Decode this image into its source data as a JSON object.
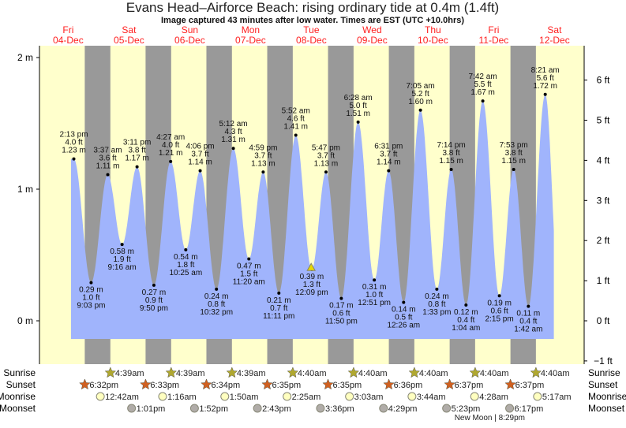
{
  "chart_data": {
    "type": "area",
    "title": "Evans Head–Airforce Beach: rising  ordinary tide at 0.4m (1.4ft)",
    "subtitle": "Image captured 43 minutes after low water. Times are EST (UTC +10.0hrs)",
    "days": [
      {
        "dow": "Fri",
        "date": "04-Dec"
      },
      {
        "dow": "Sat",
        "date": "05-Dec"
      },
      {
        "dow": "Sun",
        "date": "06-Dec"
      },
      {
        "dow": "Mon",
        "date": "07-Dec"
      },
      {
        "dow": "Tue",
        "date": "08-Dec"
      },
      {
        "dow": "Wed",
        "date": "09-Dec"
      },
      {
        "dow": "Thu",
        "date": "10-Dec"
      },
      {
        "dow": "Fri",
        "date": "11-Dec"
      },
      {
        "dow": "Sat",
        "date": "12-Dec"
      }
    ],
    "y_left": {
      "unit": "m",
      "ticks": [
        "0 m",
        "1 m",
        "2 m"
      ],
      "values": [
        0,
        1,
        2
      ]
    },
    "y_right": {
      "unit": "ft",
      "ticks": [
        "−1 ft",
        "0 ft",
        "1 ft",
        "2 ft",
        "3 ft",
        "4 ft",
        "5 ft",
        "6 ft"
      ],
      "values": [
        -1,
        0,
        1,
        2,
        3,
        4,
        5,
        6
      ]
    },
    "extremes": [
      {
        "day": 0,
        "time": "2:13 pm",
        "ft": "4.0 ft",
        "m": 1.23,
        "type": "high"
      },
      {
        "day": 0,
        "time": "9:03 pm",
        "ft": "1.0 ft",
        "m": 0.29,
        "type": "low"
      },
      {
        "day": 1,
        "time": "3:37 am",
        "ft": "3.6 ft",
        "m": 1.11,
        "type": "high"
      },
      {
        "day": 1,
        "time": "9:16 am",
        "ft": "1.9 ft",
        "m": 0.58,
        "type": "low"
      },
      {
        "day": 1,
        "time": "3:11 pm",
        "ft": "3.8 ft",
        "m": 1.17,
        "type": "high"
      },
      {
        "day": 1,
        "time": "9:50 pm",
        "ft": "0.9 ft",
        "m": 0.27,
        "type": "low"
      },
      {
        "day": 2,
        "time": "4:27 am",
        "ft": "4.0 ft",
        "m": 1.21,
        "type": "high"
      },
      {
        "day": 2,
        "time": "10:25 am",
        "ft": "1.8 ft",
        "m": 0.54,
        "type": "low"
      },
      {
        "day": 2,
        "time": "4:06 pm",
        "ft": "3.7 ft",
        "m": 1.14,
        "type": "high"
      },
      {
        "day": 2,
        "time": "10:32 pm",
        "ft": "0.8 ft",
        "m": 0.24,
        "type": "low"
      },
      {
        "day": 3,
        "time": "5:12 am",
        "ft": "4.3 ft",
        "m": 1.31,
        "type": "high"
      },
      {
        "day": 3,
        "time": "11:20 am",
        "ft": "1.5 ft",
        "m": 0.47,
        "type": "low"
      },
      {
        "day": 3,
        "time": "4:59 pm",
        "ft": "3.7 ft",
        "m": 1.13,
        "type": "high"
      },
      {
        "day": 3,
        "time": "11:11 pm",
        "ft": "0.7 ft",
        "m": 0.21,
        "type": "low"
      },
      {
        "day": 4,
        "time": "5:52 am",
        "ft": "4.6 ft",
        "m": 1.41,
        "type": "high"
      },
      {
        "day": 4,
        "time": "12:09 pm",
        "ft": "1.3 ft",
        "m": 0.39,
        "type": "low"
      },
      {
        "day": 4,
        "time": "5:47 pm",
        "ft": "3.7 ft",
        "m": 1.13,
        "type": "high"
      },
      {
        "day": 4,
        "time": "11:50 pm",
        "ft": "0.6 ft",
        "m": 0.17,
        "type": "low"
      },
      {
        "day": 5,
        "time": "6:28 am",
        "ft": "5.0 ft",
        "m": 1.51,
        "type": "high"
      },
      {
        "day": 5,
        "time": "12:51 pm",
        "ft": "1.0 ft",
        "m": 0.31,
        "type": "low"
      },
      {
        "day": 5,
        "time": "6:31 pm",
        "ft": "3.7 ft",
        "m": 1.14,
        "type": "high"
      },
      {
        "day": 6,
        "time": "12:26 am",
        "ft": "0.5 ft",
        "m": 0.14,
        "type": "low"
      },
      {
        "day": 6,
        "time": "7:05 am",
        "ft": "5.2 ft",
        "m": 1.6,
        "type": "high"
      },
      {
        "day": 6,
        "time": "1:33 pm",
        "ft": "0.8 ft",
        "m": 0.24,
        "type": "low"
      },
      {
        "day": 6,
        "time": "7:14 pm",
        "ft": "3.8 ft",
        "m": 1.15,
        "type": "high"
      },
      {
        "day": 7,
        "time": "1:04 am",
        "ft": "0.4 ft",
        "m": 0.12,
        "type": "low"
      },
      {
        "day": 7,
        "time": "7:42 am",
        "ft": "5.5 ft",
        "m": 1.67,
        "type": "high"
      },
      {
        "day": 7,
        "time": "2:15 pm",
        "ft": "0.6 ft",
        "m": 0.19,
        "type": "low"
      },
      {
        "day": 7,
        "time": "7:53 pm",
        "ft": "3.8 ft",
        "m": 1.15,
        "type": "high"
      },
      {
        "day": 8,
        "time": "1:42 am",
        "ft": "0.4 ft",
        "m": 0.11,
        "type": "low"
      },
      {
        "day": 8,
        "time": "8:21 am",
        "ft": "5.6 ft",
        "m": 1.72,
        "type": "high"
      }
    ],
    "current": {
      "day": 4,
      "time": "12:52 pm",
      "m": 0.4
    },
    "sun_moon": {
      "labels": {
        "sunrise": "Sunrise",
        "sunset": "Sunset",
        "moonrise": "Moonrise",
        "moonset": "Moonset"
      },
      "sunrise": [
        {
          "day": 1,
          "time": "4:39am"
        },
        {
          "day": 2,
          "time": "4:39am"
        },
        {
          "day": 3,
          "time": "4:39am"
        },
        {
          "day": 4,
          "time": "4:40am"
        },
        {
          "day": 5,
          "time": "4:40am"
        },
        {
          "day": 6,
          "time": "4:40am"
        },
        {
          "day": 7,
          "time": "4:40am"
        },
        {
          "day": 8,
          "time": "4:40am"
        }
      ],
      "sunset": [
        {
          "day": 0,
          "time": "6:32pm"
        },
        {
          "day": 1,
          "time": "6:33pm"
        },
        {
          "day": 2,
          "time": "6:34pm"
        },
        {
          "day": 3,
          "time": "6:35pm"
        },
        {
          "day": 4,
          "time": "6:35pm"
        },
        {
          "day": 5,
          "time": "6:36pm"
        },
        {
          "day": 6,
          "time": "6:37pm"
        },
        {
          "day": 7,
          "time": "6:37pm"
        }
      ],
      "moonrise": [
        {
          "day": 1,
          "time": "12:42am"
        },
        {
          "day": 2,
          "time": "1:16am"
        },
        {
          "day": 3,
          "time": "1:50am"
        },
        {
          "day": 4,
          "time": "2:25am"
        },
        {
          "day": 5,
          "time": "3:03am"
        },
        {
          "day": 6,
          "time": "3:44am"
        },
        {
          "day": 7,
          "time": "4:28am"
        },
        {
          "day": 8,
          "time": "5:17am"
        }
      ],
      "moonset": [
        {
          "day": 1,
          "time": "1:01pm"
        },
        {
          "day": 2,
          "time": "1:52pm"
        },
        {
          "day": 3,
          "time": "2:43pm"
        },
        {
          "day": 4,
          "time": "3:36pm"
        },
        {
          "day": 5,
          "time": "4:29pm"
        },
        {
          "day": 6,
          "time": "5:23pm"
        },
        {
          "day": 7,
          "time": "6:17pm"
        }
      ],
      "moon_phase": "New Moon | 8:29pm"
    },
    "colors": {
      "day": "#ffffcc",
      "night": "#999999",
      "tide": "#a0b4fc",
      "date_label": "#ff2020",
      "sunrise": "#b0a830",
      "sunset": "#d06020",
      "moonrise": "#ffffc0",
      "moonset": "#b0aca8",
      "current_marker": "#e8d800"
    }
  }
}
